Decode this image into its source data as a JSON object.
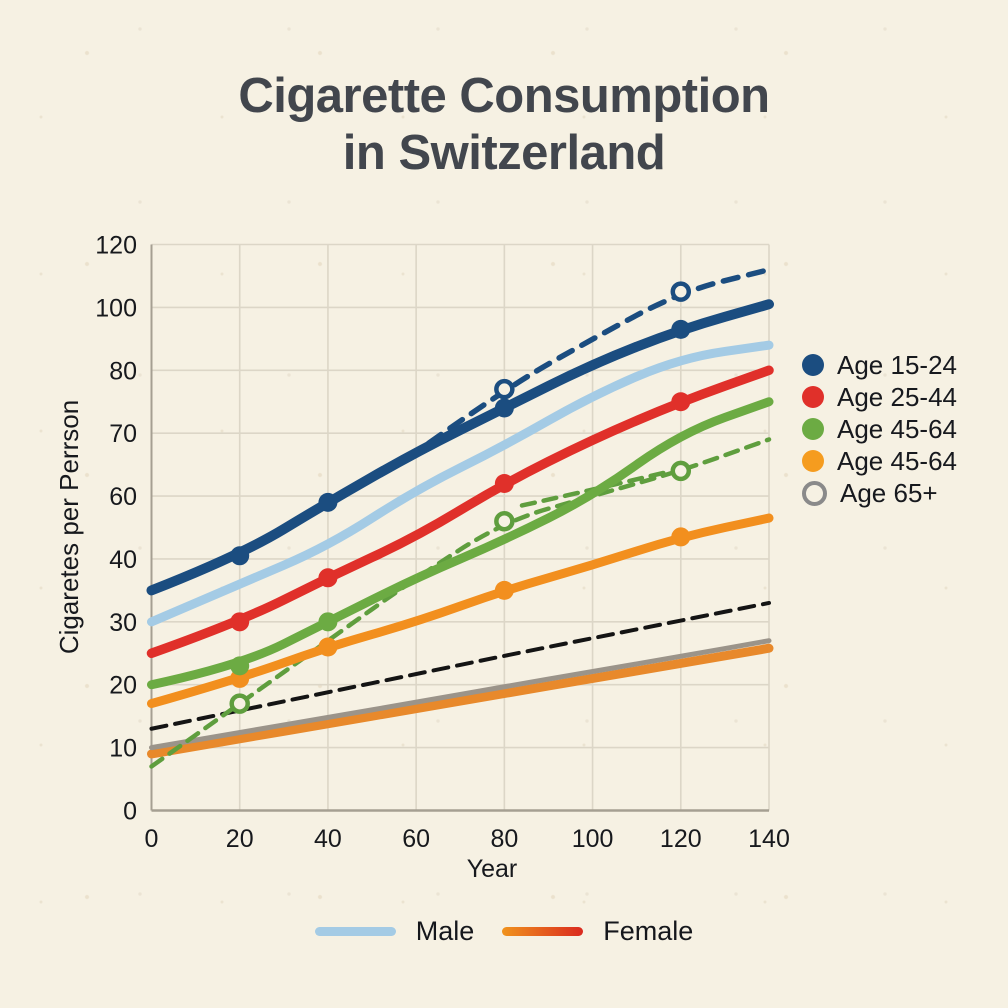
{
  "title": {
    "line1": "Cigarette Consumption",
    "line2": "in Switzerland"
  },
  "colors": {
    "background": "#f6f1e3",
    "grid": "#dcd6c7",
    "axis": "#a59f92",
    "tick_text": "#17191d",
    "title_text": "#42464d",
    "navy": "#1b4d80",
    "light_blue": "#a4cbe5",
    "red": "#e0302a",
    "green": "#6cab43",
    "green_dashed": "#5f9e3e",
    "orange": "#f28f1e",
    "gray": "#9b948a",
    "black": "#141414"
  },
  "chart_data": {
    "type": "line",
    "title": "Cigarette Consumption in Switzerland",
    "xlabel": "Year",
    "ylabel": "Cigaretes per Perrson",
    "x_ticks": [
      0,
      20,
      40,
      60,
      80,
      100,
      120,
      140
    ],
    "y_ticks": [
      0,
      10,
      20,
      30,
      40,
      60,
      70,
      80,
      100,
      120
    ],
    "grid": true,
    "x": [
      0,
      20,
      40,
      60,
      80,
      100,
      120,
      140
    ],
    "series": [
      {
        "name": "trend-orange-underlay",
        "color": "#e8892b",
        "style": "solid",
        "width": 9,
        "values": [
          9,
          11.4,
          13.8,
          16.2,
          18.6,
          21,
          23.4,
          25.8
        ]
      },
      {
        "name": "trend-gray",
        "color": "#9b948a",
        "style": "solid",
        "width": 5,
        "values": [
          10,
          12.4,
          14.8,
          17.2,
          19.7,
          22.1,
          24.5,
          27
        ]
      },
      {
        "name": "trend-black-dashed",
        "color": "#141414",
        "style": "dashed",
        "dash": "15 9",
        "width": 4,
        "values": [
          13,
          15.9,
          18.8,
          21.7,
          24.6,
          27.4,
          30.2,
          33
        ]
      },
      {
        "name": "age-45-64-projection-echo",
        "color": "#5f9e3e",
        "style": "dashed",
        "dash": "13 9",
        "width": 4.5,
        "x": [
          84,
          100,
          118
        ],
        "values": [
          57,
          61,
          64
        ]
      },
      {
        "name": "age-45-64-projection",
        "color": "#5f9e3e",
        "style": "dashed",
        "dash": "13 9",
        "width": 4.5,
        "marker": "open",
        "markers": [
          20,
          80,
          120
        ],
        "values": [
          7,
          17,
          27,
          37,
          52,
          60,
          64,
          69
        ]
      },
      {
        "name": "age-45-64-female",
        "color": "#f28f1e",
        "style": "solid",
        "width": 9,
        "marker": "filled",
        "markers": [
          20,
          40,
          80,
          120
        ],
        "values": [
          17,
          21,
          26,
          30,
          35,
          39,
          47,
          53
        ]
      },
      {
        "name": "age-45-64-male",
        "color": "#6cab43",
        "style": "solid",
        "width": 9,
        "marker": "filled",
        "markers": [
          20,
          40
        ],
        "values": [
          20,
          23,
          30,
          37,
          46,
          60,
          70,
          75
        ]
      },
      {
        "name": "age-25-44",
        "color": "#e0302a",
        "style": "solid",
        "width": 9.5,
        "marker": "filled",
        "markers": [
          20,
          40,
          80,
          120
        ],
        "values": [
          25,
          30,
          37,
          47,
          62,
          69,
          75,
          80
        ]
      },
      {
        "name": "male-overall",
        "color": "#a4cbe5",
        "style": "solid",
        "width": 9,
        "values": [
          30,
          36,
          44,
          61,
          68,
          76,
          84,
          88
        ]
      },
      {
        "name": "age-15-24-projection",
        "color": "#1b4d80",
        "style": "dashed",
        "dash": "15 11",
        "width": 5.5,
        "marker": "open",
        "markers": [
          80,
          120
        ],
        "x": [
          58,
          80,
          100,
          120,
          140
        ],
        "values": [
          66,
          77,
          90,
          105,
          112
        ]
      },
      {
        "name": "age-15-24",
        "color": "#1b4d80",
        "style": "solid",
        "width": 10,
        "marker": "filled",
        "markers": [
          20,
          40,
          80,
          120
        ],
        "values": [
          35,
          41,
          58,
          67,
          74,
          82,
          93,
          101
        ]
      }
    ]
  },
  "legend": {
    "items": [
      {
        "label": "Age 15-24",
        "color": "#1b4d80",
        "open": false
      },
      {
        "label": "Age 25-44",
        "color": "#e0302a",
        "open": false
      },
      {
        "label": "Age 45-64",
        "color": "#6cab43",
        "open": false
      },
      {
        "label": "Age 45-64",
        "color": "#f59c1f",
        "open": false
      },
      {
        "label": "Age 65+",
        "color": "#8a8a8a",
        "open": true
      }
    ]
  },
  "bottom_legend": {
    "items": [
      {
        "label": "Male",
        "colors": [
          "#a4cbe5",
          "#a4cbe5"
        ]
      },
      {
        "label": "Female",
        "colors": [
          "#f0931d",
          "#da2a1f"
        ]
      }
    ]
  }
}
